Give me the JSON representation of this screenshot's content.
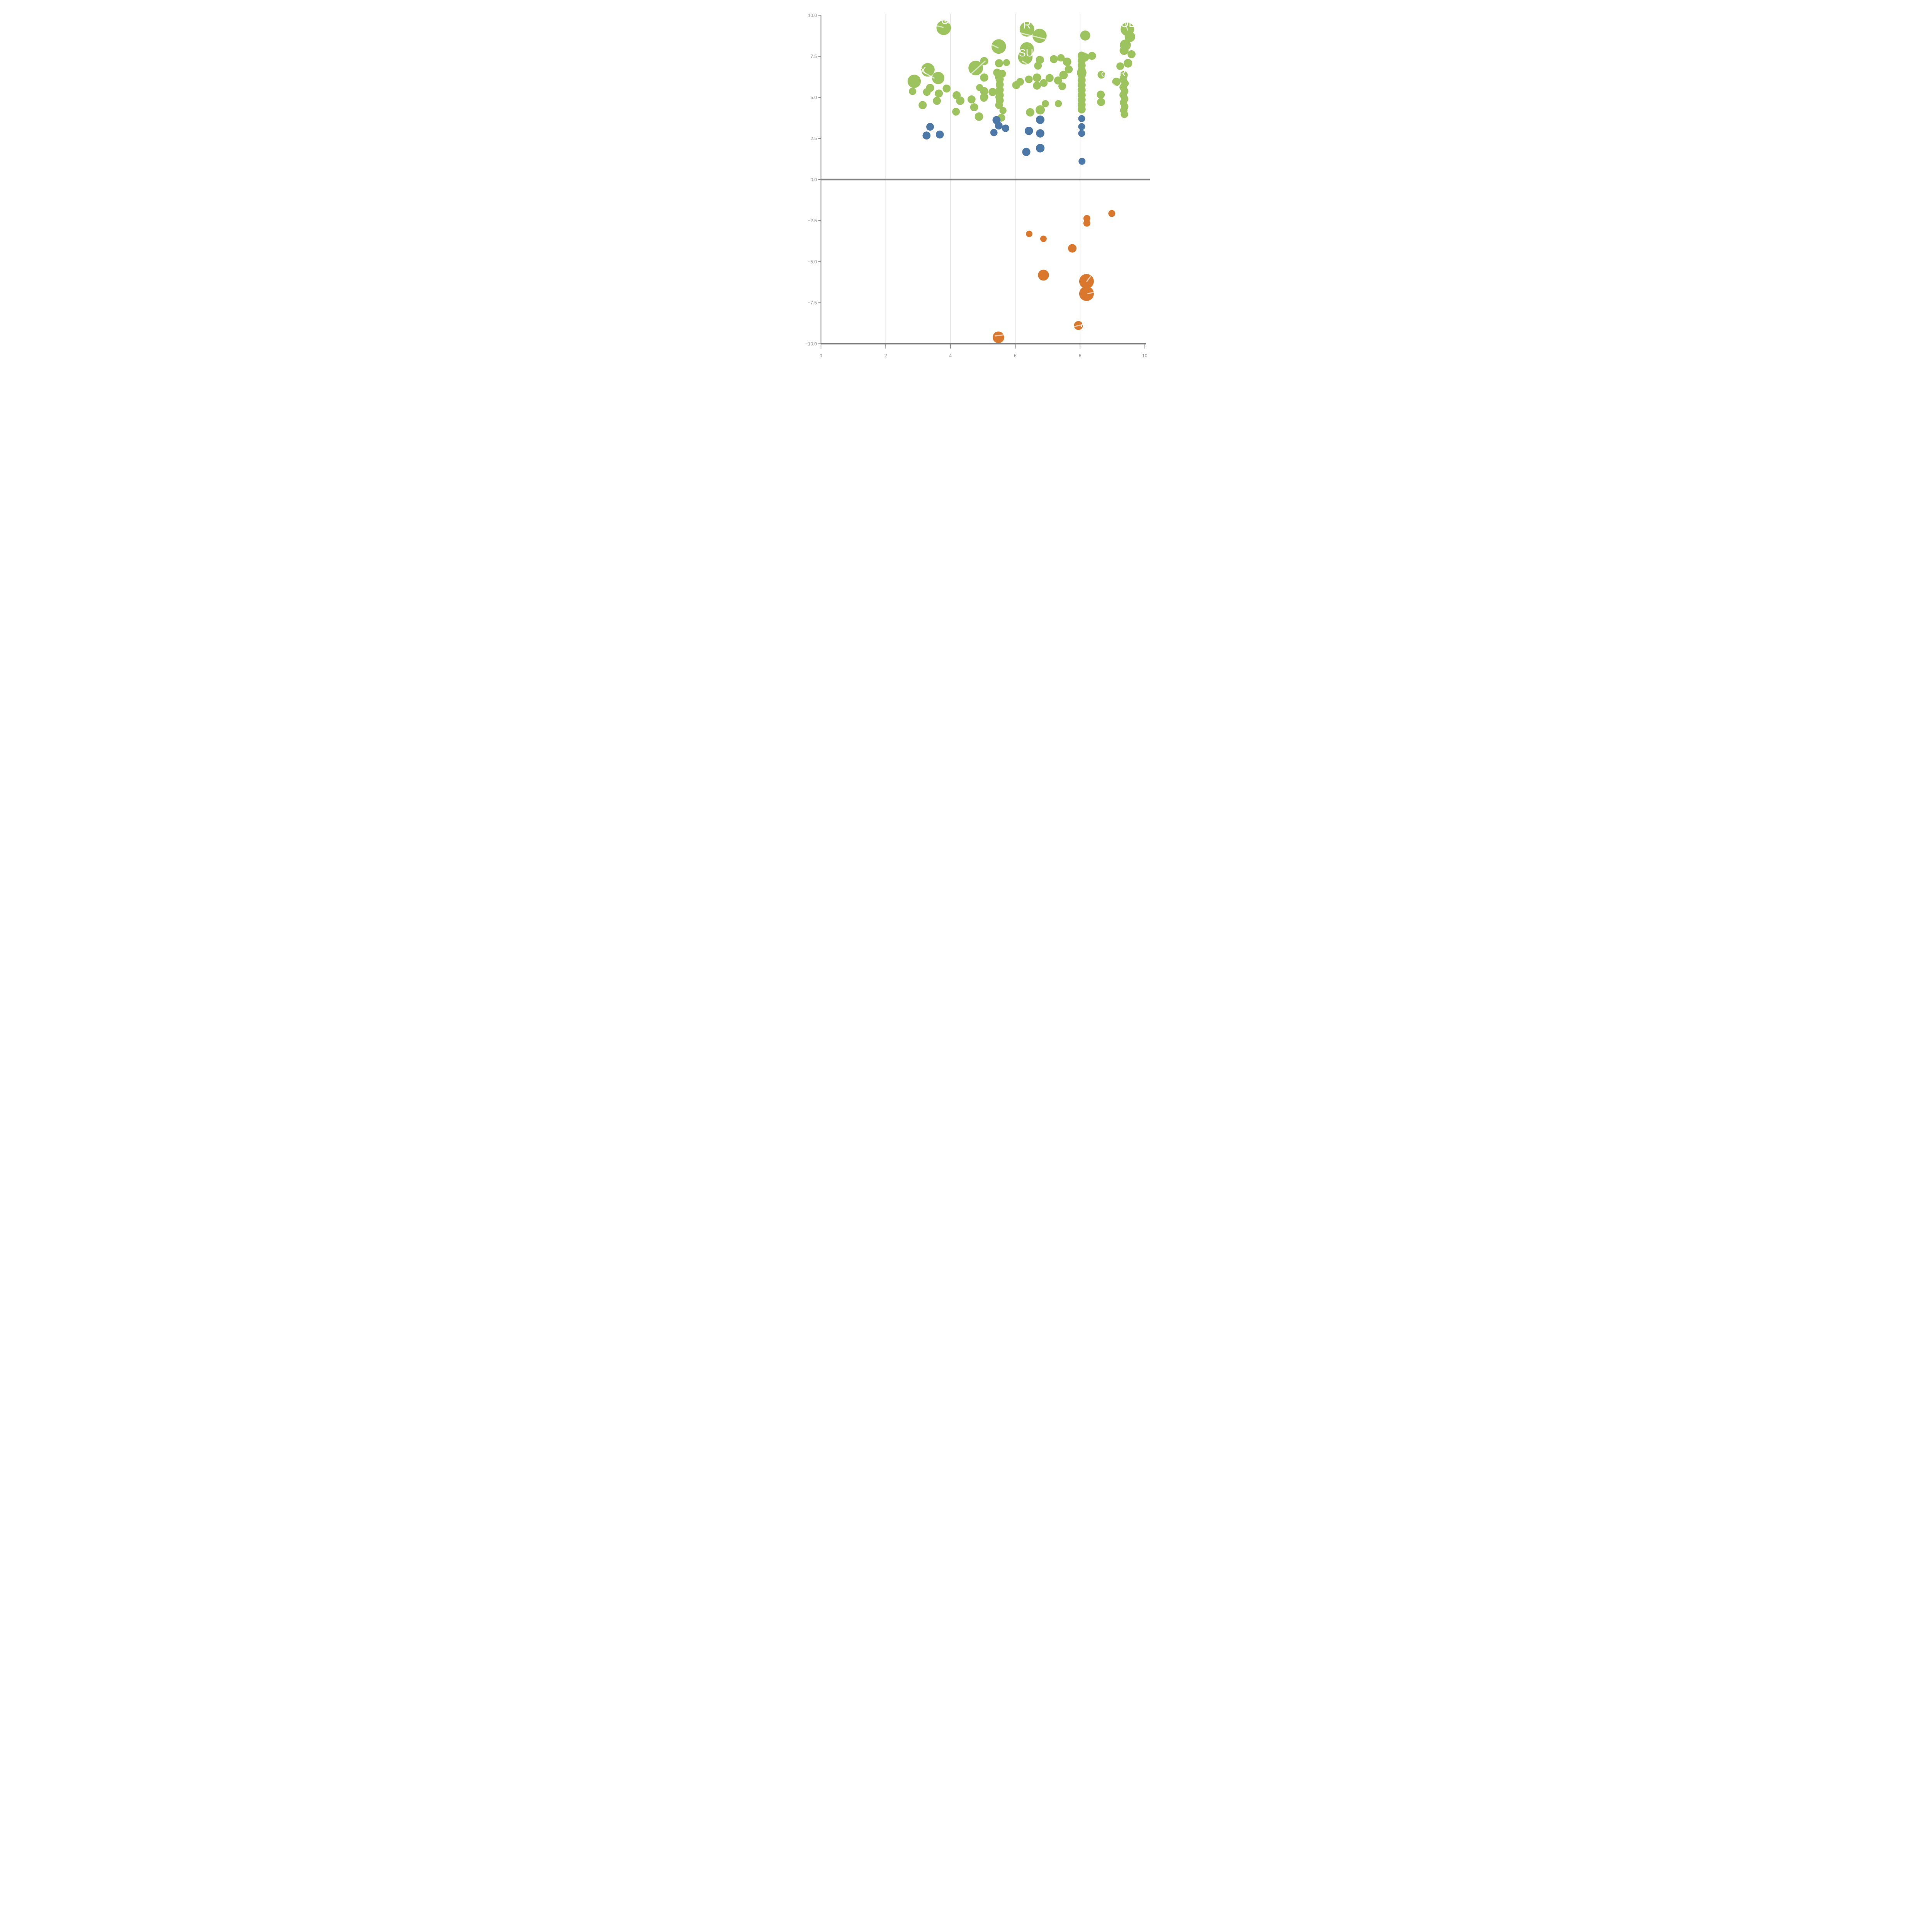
{
  "chart_data": {
    "type": "scatter",
    "title": "",
    "xlabel": "",
    "ylabel": "",
    "xlim": [
      0,
      10
    ],
    "ylim": [
      -10,
      10
    ],
    "grid": "vertical-only",
    "legend_position": "none",
    "x_ticks": [
      0,
      2,
      4,
      6,
      8,
      10
    ],
    "x_tick_labels": [
      "0",
      "2",
      "4",
      "6",
      "8",
      "10"
    ],
    "y_ticks": [
      10,
      7.5,
      5,
      2.5,
      0,
      -2.5,
      -5,
      -7.5,
      -10
    ],
    "y_tick_labels": [
      "10.0",
      "7.5",
      "5.0",
      "2.5",
      "0.0",
      "−2.5",
      "−5.0",
      "−7.5",
      "−10.0"
    ],
    "x_gridlines": [
      2,
      4,
      6,
      8
    ],
    "zero_line_y": 0,
    "colors": {
      "green": "#9cc35d",
      "blue": "#4c78a8",
      "orange": "#d9782d",
      "axis": "#808080",
      "gridline": "#c9c9c9",
      "tick_label": "#8b8b8b",
      "label_text": "#ffffff"
    },
    "series": [
      {
        "name": "green",
        "color": "#9cc35d",
        "points": [
          [
            3.79,
            9.24,
            94
          ],
          [
            5.49,
            8.1,
            94
          ],
          [
            6.36,
            9.15,
            95
          ],
          [
            6.75,
            8.75,
            92
          ],
          [
            8.16,
            8.77,
            65
          ],
          [
            9.46,
            9.15,
            87
          ],
          [
            9.54,
            8.69,
            68
          ],
          [
            9.4,
            8.19,
            71
          ],
          [
            5.04,
            7.21,
            53
          ],
          [
            5.5,
            7.08,
            53
          ],
          [
            4.78,
            6.79,
            95
          ],
          [
            6.36,
            7.94,
            90
          ],
          [
            6.31,
            7.45,
            94
          ],
          [
            6.76,
            7.29,
            53
          ],
          [
            6.7,
            6.93,
            50
          ],
          [
            7.19,
            7.33,
            52
          ],
          [
            7.41,
            7.41,
            48
          ],
          [
            7.6,
            7.17,
            55
          ],
          [
            7.65,
            6.71,
            52
          ],
          [
            8.14,
            7.46,
            60
          ],
          [
            8.37,
            7.53,
            52
          ],
          [
            9.36,
            7.86,
            58
          ],
          [
            9.59,
            7.63,
            52
          ],
          [
            9.24,
            6.9,
            50
          ],
          [
            9.48,
            7.08,
            56
          ],
          [
            9.35,
            6.36,
            52
          ],
          [
            9.12,
            5.95,
            54
          ],
          [
            8.64,
            5.17,
            52
          ],
          [
            8.65,
            4.72,
            52
          ],
          [
            8.66,
            6.38,
            50
          ],
          [
            9.33,
            6.09,
            48
          ],
          [
            9.39,
            5.85,
            48
          ],
          [
            9.33,
            5.62,
            48
          ],
          [
            9.38,
            5.38,
            48
          ],
          [
            9.33,
            5.15,
            48
          ],
          [
            9.38,
            4.91,
            48
          ],
          [
            9.34,
            4.68,
            48
          ],
          [
            9.38,
            4.44,
            48
          ],
          [
            9.35,
            4.21,
            48
          ],
          [
            9.37,
            3.97,
            48
          ],
          [
            3.3,
            6.68,
            88
          ],
          [
            2.88,
            5.98,
            86
          ],
          [
            3.62,
            6.18,
            80
          ],
          [
            3.37,
            5.58,
            53
          ],
          [
            3.27,
            5.33,
            50
          ],
          [
            3.64,
            5.24,
            52
          ],
          [
            3.58,
            4.79,
            52
          ],
          [
            3.88,
            5.54,
            52
          ],
          [
            3.14,
            4.53,
            53
          ],
          [
            2.83,
            5.37,
            48
          ],
          [
            4.19,
            5.13,
            53
          ],
          [
            4.3,
            4.8,
            55
          ],
          [
            4.65,
            4.88,
            52
          ],
          [
            4.17,
            4.13,
            50
          ],
          [
            4.73,
            4.4,
            52
          ],
          [
            5.03,
            4.96,
            48
          ],
          [
            5.5,
            5.02,
            48
          ],
          [
            5.5,
            4.53,
            50
          ],
          [
            4.88,
            3.83,
            55
          ],
          [
            5.57,
            3.76,
            50
          ],
          [
            5.04,
            6.21,
            53
          ],
          [
            5.04,
            5.38,
            53
          ],
          [
            5.04,
            5.03,
            53
          ],
          [
            5.3,
            5.33,
            53
          ],
          [
            5.44,
            6.51,
            52
          ],
          [
            5.59,
            6.44,
            52
          ],
          [
            5.52,
            6.1,
            52
          ],
          [
            5.52,
            5.78,
            52
          ],
          [
            5.52,
            5.46,
            52
          ],
          [
            5.52,
            5.14,
            52
          ],
          [
            5.52,
            4.82,
            52
          ],
          [
            6.03,
            5.75,
            52
          ],
          [
            6.15,
            5.95,
            50
          ],
          [
            6.46,
            4.09,
            54
          ],
          [
            6.77,
            4.24,
            60
          ],
          [
            6.42,
            6.1,
            50
          ],
          [
            6.67,
            6.2,
            55
          ],
          [
            6.67,
            5.72,
            52
          ],
          [
            6.88,
            5.88,
            50
          ],
          [
            7.06,
            6.18,
            52
          ],
          [
            7.32,
            6.03,
            52
          ],
          [
            7.49,
            6.36,
            55
          ],
          [
            7.45,
            5.68,
            50
          ],
          [
            5.73,
            7.12,
            45
          ],
          [
            5.49,
            6.24,
            50
          ],
          [
            4.9,
            5.6,
            46
          ],
          [
            5.62,
            4.2,
            46
          ],
          [
            6.93,
            4.62,
            46
          ],
          [
            7.33,
            4.62,
            46
          ],
          [
            8.05,
            7.55,
            52
          ],
          [
            8.05,
            7.25,
            52
          ],
          [
            8.05,
            6.95,
            52
          ],
          [
            8.05,
            6.65,
            52
          ],
          [
            8.05,
            6.35,
            52
          ],
          [
            8.05,
            6.05,
            52
          ],
          [
            8.05,
            5.75,
            52
          ],
          [
            8.05,
            5.45,
            52
          ],
          [
            8.05,
            5.15,
            52
          ],
          [
            8.05,
            4.85,
            52
          ],
          [
            8.05,
            4.55,
            52
          ],
          [
            8.05,
            4.27,
            52
          ],
          [
            8.05,
            6.5,
            62
          ]
        ]
      },
      {
        "name": "blue",
        "color": "#4c78a8",
        "points": [
          [
            3.37,
            3.21,
            50
          ],
          [
            3.26,
            2.68,
            52
          ],
          [
            3.67,
            2.74,
            52
          ],
          [
            5.42,
            3.62,
            52
          ],
          [
            5.49,
            3.28,
            50
          ],
          [
            5.7,
            3.12,
            48
          ],
          [
            5.34,
            2.86,
            47
          ],
          [
            6.77,
            3.64,
            55
          ],
          [
            6.42,
            2.96,
            54
          ],
          [
            6.77,
            2.81,
            54
          ],
          [
            6.77,
            1.91,
            56
          ],
          [
            6.34,
            1.68,
            53
          ],
          [
            8.05,
            3.71,
            45
          ],
          [
            8.05,
            3.22,
            45
          ],
          [
            8.05,
            2.81,
            45
          ],
          [
            8.06,
            1.11,
            45
          ]
        ]
      },
      {
        "name": "orange",
        "color": "#d9782d",
        "points": [
          [
            8.21,
            -2.37,
            45
          ],
          [
            8.21,
            -2.66,
            45
          ],
          [
            8.98,
            -2.07,
            45
          ],
          [
            7.76,
            -4.19,
            55
          ],
          [
            6.43,
            -3.31,
            42
          ],
          [
            6.87,
            -3.61,
            42
          ],
          [
            6.87,
            -5.82,
            71
          ],
          [
            8.2,
            -6.2,
            95
          ],
          [
            8.2,
            -6.95,
            95
          ],
          [
            7.95,
            -8.89,
            58
          ],
          [
            5.48,
            -9.61,
            75
          ]
        ]
      }
    ],
    "annotations": {
      "labels": [
        {
          "text": "CFX",
          "x": 2.63,
          "y": 6.44,
          "size": 130
        },
        {
          "text": "SUPE",
          "x": 6.11,
          "y": 7.5,
          "size": 135
        },
        {
          "text": "R",
          "x": 6.24,
          "y": 9.2,
          "size": 140
        },
        {
          "text": "OL",
          "x": 9.25,
          "y": 9.28,
          "size": 135
        },
        {
          "text": "A",
          "x": 8.02,
          "y": -8.97,
          "size": 130
        },
        {
          "text": "O",
          "x": 3.71,
          "y": 9.47,
          "size": 130
        },
        {
          "text": "o",
          "x": 8.65,
          "y": 6.27,
          "size": 115
        },
        {
          "text": "R",
          "x": 9.2,
          "y": 6.3,
          "size": 120
        }
      ],
      "leader_lines": [
        {
          "x1": 3.05,
          "y1": 6.67,
          "x2": 3.49,
          "y2": 6.18
        },
        {
          "x1": 3.07,
          "y1": 5.68,
          "x2": 3.12,
          "y2": 5.12
        },
        {
          "x1": 6.05,
          "y1": 8.98,
          "x2": 6.97,
          "y2": 8.53
        },
        {
          "x1": 5.28,
          "y1": 8.2,
          "x2": 5.47,
          "y2": 8.02
        },
        {
          "x1": 4.62,
          "y1": 6.41,
          "x2": 5.07,
          "y2": 7.21
        },
        {
          "x1": 6.22,
          "y1": 7.21,
          "x2": 6.49,
          "y2": 6.88
        },
        {
          "x1": 3.58,
          "y1": 9.36,
          "x2": 3.77,
          "y2": 9.27
        },
        {
          "x1": 3.83,
          "y1": 9.61,
          "x2": 3.97,
          "y2": 9.52
        },
        {
          "x1": 8.21,
          "y1": -6.2,
          "x2": 8.36,
          "y2": -5.8
        },
        {
          "x1": 8.24,
          "y1": -6.95,
          "x2": 8.55,
          "y2": -6.81
        },
        {
          "x1": 7.83,
          "y1": -8.95,
          "x2": 8.13,
          "y2": -8.81
        },
        {
          "x1": 5.38,
          "y1": -9.52,
          "x2": 5.73,
          "y2": -9.44
        },
        {
          "x1": 9.38,
          "y1": 9.64,
          "x2": 9.47,
          "y2": 9.1
        },
        {
          "x1": 9.01,
          "y1": 5.83,
          "x2": 9.18,
          "y2": 5.58
        },
        {
          "x1": 8.83,
          "y1": 6.85,
          "x2": 9.06,
          "y2": 6.66
        },
        {
          "x1": 8.06,
          "y1": 7.83,
          "x2": 8.25,
          "y2": 7.66
        }
      ],
      "fragments": [
        {
          "x1": 5.3,
          "y1": 7.59,
          "x2": 5.51,
          "y2": 7.59,
          "width": 22
        }
      ]
    }
  }
}
